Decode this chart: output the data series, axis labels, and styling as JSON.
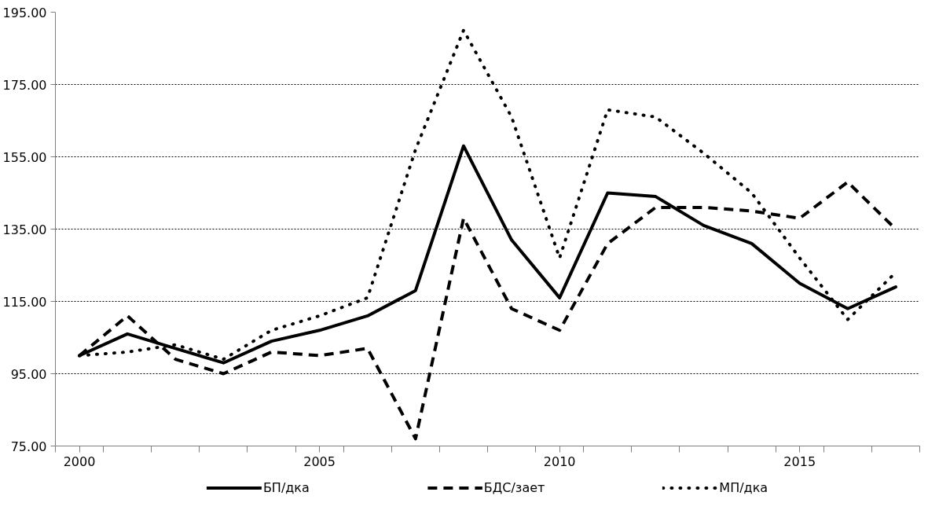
{
  "chart_data": {
    "type": "line",
    "x": [
      2000,
      2001,
      2002,
      2003,
      2004,
      2005,
      2006,
      2007,
      2008,
      2009,
      2010,
      2011,
      2012,
      2013,
      2014,
      2015,
      2016,
      2017
    ],
    "series": [
      {
        "name": "БП/дка",
        "color": "#000000",
        "line_style": "solid",
        "values": [
          100,
          106,
          102,
          98,
          104,
          107,
          111,
          118,
          158,
          132,
          116,
          145,
          144,
          136,
          131,
          120,
          113,
          119
        ]
      },
      {
        "name": "БДС/зает",
        "color": "#000000",
        "line_style": "dashed",
        "values": [
          100,
          111,
          99,
          95,
          101,
          100,
          102,
          77,
          138,
          113,
          107,
          131,
          141,
          141,
          140,
          138,
          148,
          135
        ]
      },
      {
        "name": "МП/дка",
        "color": "#000000",
        "line_style": "dotted",
        "values": [
          100,
          101,
          103,
          99,
          107,
          111,
          116,
          157,
          190,
          166,
          127,
          168,
          166,
          156,
          145,
          127,
          110,
          123
        ]
      }
    ],
    "xlim": [
      1999.5,
      2017.5
    ],
    "xticks": [
      2000,
      2005,
      2010,
      2015,
      {
        "value": 1999.5,
        "label": null
      },
      {
        "value": 2000.5,
        "label": null
      },
      {
        "value": 2001.5,
        "label": null
      },
      {
        "value": 2002.5,
        "label": null
      },
      {
        "value": 2003.5,
        "label": null
      },
      {
        "value": 2004.5,
        "label": null
      },
      {
        "value": 2005.5,
        "label": null
      },
      {
        "value": 2006.5,
        "label": null
      },
      {
        "value": 2007.5,
        "label": null
      },
      {
        "value": 2008.5,
        "label": null
      },
      {
        "value": 2009.5,
        "label": null
      },
      {
        "value": 2010.5,
        "label": null
      },
      {
        "value": 2011.5,
        "label": null
      },
      {
        "value": 2012.5,
        "label": null
      },
      {
        "value": 2013.5,
        "label": null
      },
      {
        "value": 2014.5,
        "label": null
      },
      {
        "value": 2015.5,
        "label": null
      },
      {
        "value": 2016.5,
        "label": null
      },
      {
        "value": 2017.5,
        "label": null
      }
    ],
    "ylim": [
      75,
      195
    ],
    "yticks": [
      {
        "value": 75,
        "label": "75.00"
      },
      {
        "value": 95,
        "label": "95.00"
      },
      {
        "value": 115,
        "label": "115.00"
      },
      {
        "value": 135,
        "label": "135.00"
      },
      {
        "value": 155,
        "label": "155.00"
      },
      {
        "value": 175,
        "label": "175.00"
      },
      {
        "value": 195,
        "label": "195.00"
      }
    ],
    "grid": "y",
    "legend": "bottom"
  }
}
